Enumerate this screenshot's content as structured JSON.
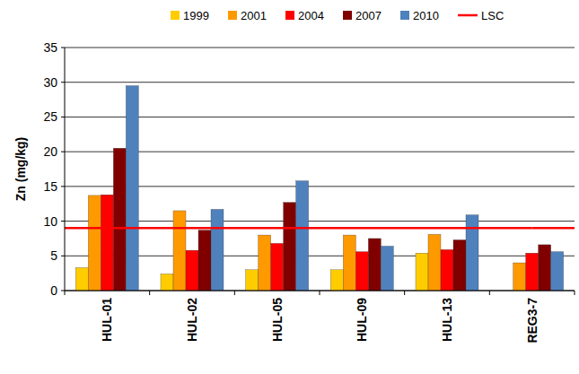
{
  "chart_data": {
    "type": "bar",
    "y_label": "Zn (mg/kg)",
    "categories": [
      "HUL-01",
      "HUL-02",
      "HUL-05",
      "HUL-09",
      "HUL-13",
      "REG3-7"
    ],
    "series": [
      {
        "name": "1999",
        "color": "#ffcc00",
        "values": [
          3.3,
          2.4,
          3.0,
          3.0,
          5.4,
          null
        ]
      },
      {
        "name": "2001",
        "color": "#ff9900",
        "values": [
          13.7,
          11.5,
          8.0,
          8.0,
          8.1,
          4.0
        ]
      },
      {
        "name": "2004",
        "color": "#ff0000",
        "values": [
          13.8,
          5.8,
          6.8,
          5.6,
          5.9,
          5.4
        ]
      },
      {
        "name": "2007",
        "color": "#800000",
        "values": [
          20.5,
          8.7,
          12.7,
          7.5,
          7.3,
          6.6
        ]
      },
      {
        "name": "2010",
        "color": "#4f81bd",
        "values": [
          29.5,
          11.7,
          15.8,
          6.4,
          10.9,
          5.6
        ]
      },
      {
        "name": "LSC",
        "type": "line",
        "color": "#ff0000",
        "values": [
          9,
          9,
          9,
          9,
          9,
          9
        ]
      }
    ],
    "ylim": [
      0,
      35
    ],
    "yticks": [
      0,
      5,
      10,
      15,
      20,
      25,
      30,
      35
    ],
    "grid": true,
    "legend": "top"
  }
}
